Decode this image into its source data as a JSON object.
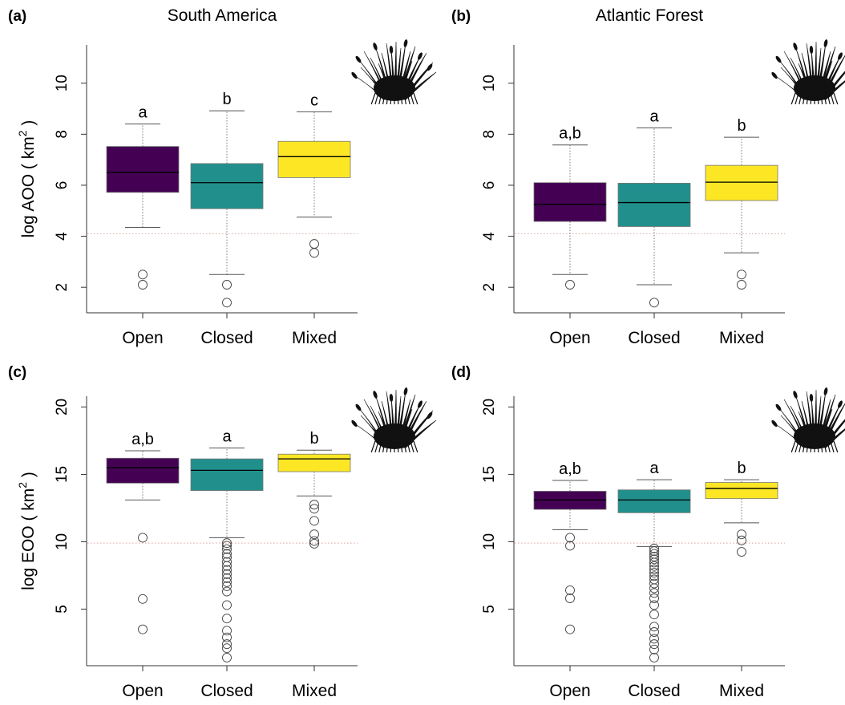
{
  "colors": {
    "open": "#440154",
    "closed": "#21908C",
    "mixed": "#FDE725",
    "threshold_line": "#e0a0a0",
    "axis": "#333333"
  },
  "ylabels": {
    "aoo_main": "log AOO ( km",
    "aoo_sup": "2",
    "aoo_close": ")",
    "eoo_main": "log EOO ( km",
    "eoo_sup": "2",
    "eoo_close": ")"
  },
  "icon": "grass-silhouette-icon",
  "chart_data": [
    {
      "type": "boxplot",
      "panel_label": "(a)",
      "title": "South America",
      "ylabel": "log AOO ( km2 )",
      "categories": [
        "Open",
        "Closed",
        "Mixed"
      ],
      "ylim": [
        1.0,
        11.5
      ],
      "yticks": [
        2,
        4,
        6,
        8,
        10
      ],
      "threshold": 4.1,
      "boxes": [
        {
          "category": "Open",
          "whisker_low": 4.35,
          "q1": 5.72,
          "median": 6.5,
          "q3": 7.52,
          "whisker_high": 8.4,
          "outliers": [
            2.5,
            2.1
          ],
          "letter": "a"
        },
        {
          "category": "Closed",
          "whisker_low": 2.5,
          "q1": 5.08,
          "median": 6.1,
          "q3": 6.85,
          "whisker_high": 8.92,
          "outliers": [
            2.1,
            1.4
          ],
          "letter": "b"
        },
        {
          "category": "Mixed",
          "whisker_low": 4.75,
          "q1": 6.3,
          "median": 7.12,
          "q3": 7.72,
          "whisker_high": 8.88,
          "outliers": [
            3.7,
            3.35
          ],
          "letter": "c"
        }
      ]
    },
    {
      "type": "boxplot",
      "panel_label": "(b)",
      "title": "Atlantic Forest",
      "ylabel": "",
      "categories": [
        "Open",
        "Closed",
        "Mixed"
      ],
      "ylim": [
        1.0,
        11.5
      ],
      "yticks": [
        2,
        4,
        6,
        8,
        10
      ],
      "threshold": 4.1,
      "boxes": [
        {
          "category": "Open",
          "whisker_low": 2.5,
          "q1": 4.58,
          "median": 5.25,
          "q3": 6.1,
          "whisker_high": 7.58,
          "outliers": [
            2.1
          ],
          "letter": "a,b"
        },
        {
          "category": "Closed",
          "whisker_low": 2.1,
          "q1": 4.38,
          "median": 5.32,
          "q3": 6.08,
          "whisker_high": 8.25,
          "outliers": [
            1.4
          ],
          "letter": "a"
        },
        {
          "category": "Mixed",
          "whisker_low": 3.35,
          "q1": 5.4,
          "median": 6.12,
          "q3": 6.78,
          "whisker_high": 7.88,
          "outliers": [
            2.5,
            2.1
          ],
          "letter": "b"
        }
      ]
    },
    {
      "type": "boxplot",
      "panel_label": "(c)",
      "title": "",
      "ylabel": "log EOO ( km2 )",
      "categories": [
        "Open",
        "Closed",
        "Mixed"
      ],
      "ylim": [
        0.8,
        20.8
      ],
      "yticks": [
        5,
        10,
        15,
        20
      ],
      "threshold": 9.9,
      "boxes": [
        {
          "category": "Open",
          "whisker_low": 13.1,
          "q1": 14.35,
          "median": 15.5,
          "q3": 16.2,
          "whisker_high": 16.75,
          "outliers": [
            10.3,
            5.75,
            3.5
          ],
          "letter": "a,b"
        },
        {
          "category": "Closed",
          "whisker_low": 10.3,
          "q1": 13.8,
          "median": 15.3,
          "q3": 16.15,
          "whisker_high": 16.95,
          "outliers": [
            9.9,
            9.7,
            9.45,
            9.1,
            8.85,
            8.5,
            8.2,
            7.9,
            7.6,
            7.3,
            7.0,
            6.7,
            6.3,
            5.3,
            4.3,
            3.4,
            2.9,
            2.4,
            2.1,
            1.4
          ],
          "letter": "a"
        },
        {
          "category": "Mixed",
          "whisker_low": 13.4,
          "q1": 15.2,
          "median": 16.15,
          "q3": 16.5,
          "whisker_high": 16.8,
          "outliers": [
            12.75,
            12.45,
            11.55,
            10.55,
            10.05,
            9.85
          ],
          "letter": "b"
        }
      ]
    },
    {
      "type": "boxplot",
      "panel_label": "(d)",
      "title": "",
      "ylabel": "",
      "categories": [
        "Open",
        "Closed",
        "Mixed"
      ],
      "ylim": [
        0.8,
        20.8
      ],
      "yticks": [
        5,
        10,
        15,
        20
      ],
      "threshold": 9.9,
      "boxes": [
        {
          "category": "Open",
          "whisker_low": 10.9,
          "q1": 12.4,
          "median": 13.1,
          "q3": 13.75,
          "whisker_high": 14.55,
          "outliers": [
            10.3,
            9.7,
            6.4,
            5.8,
            3.5
          ],
          "letter": "a,b"
        },
        {
          "category": "Closed",
          "whisker_low": 9.65,
          "q1": 12.15,
          "median": 13.1,
          "q3": 13.85,
          "whisker_high": 14.6,
          "outliers": [
            9.5,
            9.3,
            9.1,
            8.9,
            8.7,
            8.45,
            8.2,
            7.95,
            7.7,
            7.45,
            7.2,
            6.9,
            6.55,
            6.2,
            5.8,
            5.3,
            4.6,
            3.7,
            3.3,
            2.8,
            2.4,
            2.0,
            1.4
          ],
          "letter": "a"
        },
        {
          "category": "Mixed",
          "whisker_low": 11.4,
          "q1": 13.2,
          "median": 13.95,
          "q3": 14.4,
          "whisker_high": 14.6,
          "outliers": [
            10.55,
            10.1,
            9.25
          ],
          "letter": "b"
        }
      ]
    }
  ]
}
